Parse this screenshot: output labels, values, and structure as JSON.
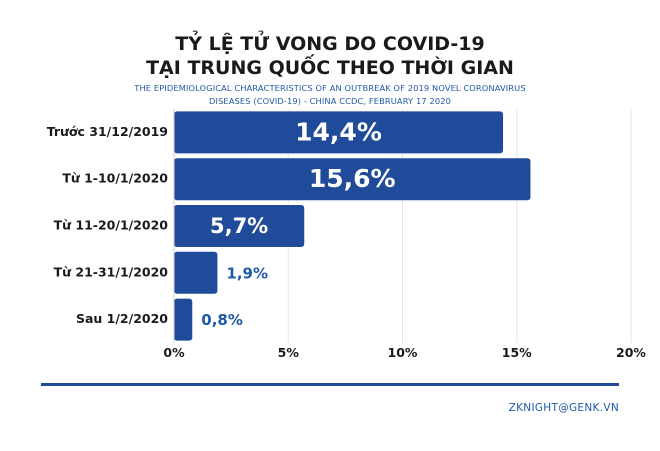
{
  "header": {
    "title_line_1": "TỶ LỆ TỬ VONG DO COVID-19",
    "title_line_2": "TẠI TRUNG QUỐC THEO THỜI GIAN",
    "subtitle_line_1": "THE EPIDEMIOLOGICAL CHARACTERISTICS OF AN OUTBREAK OF 2019 NOVEL CORONAVIRUS",
    "subtitle_line_2": "DISEASES (COVID-19) - CHINA CCDC, FEBRUARY 17 2020"
  },
  "footer": {
    "credit": "ZKNIGHT@GENK.VN"
  },
  "colors": {
    "bar": "#1f4b9a",
    "label_inside": "#ffffff",
    "label_outside": "#1f5aa6",
    "gridline": "#e6e6e6"
  },
  "chart_data": {
    "type": "bar",
    "orientation": "horizontal",
    "categories": [
      "Trước 31/12/2019",
      "Từ 1-10/1/2020",
      "Từ 11-20/1/2020",
      "Từ 21-31/1/2020",
      "Sau 1/2/2020"
    ],
    "values": [
      14.4,
      15.6,
      5.7,
      1.9,
      0.8
    ],
    "value_labels": [
      "14,4%",
      "15,6%",
      "5,7%",
      "1,9%",
      "0,8%"
    ],
    "xlim": [
      0,
      20
    ],
    "x_ticks": [
      0,
      5,
      10,
      15,
      20
    ],
    "x_tick_labels": [
      "0%",
      "5%",
      "10%",
      "15%",
      "20%"
    ],
    "grid": true,
    "legend": "none"
  }
}
